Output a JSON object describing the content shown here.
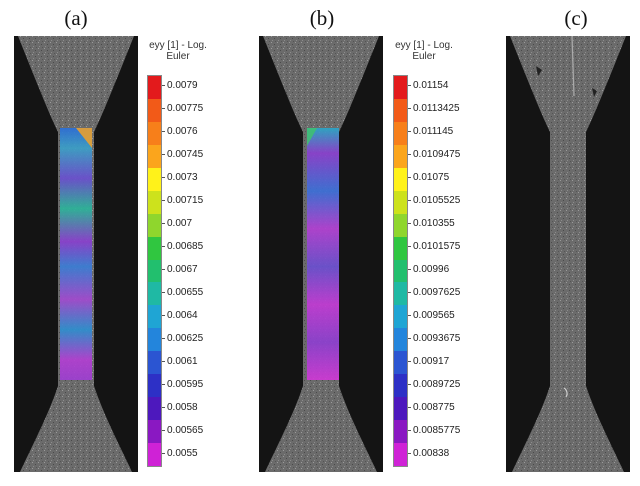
{
  "panels": [
    {
      "label": "(a)",
      "colorbar": {
        "title": [
          "eyy [1] - Log.",
          "Euler"
        ],
        "ticks": [
          "0.0079",
          "0.00775",
          "0.0076",
          "0.00745",
          "0.0073",
          "0.00715",
          "0.007",
          "0.00685",
          "0.0067",
          "0.00655",
          "0.0064",
          "0.00625",
          "0.0061",
          "0.00595",
          "0.0058",
          "0.00565",
          "0.0055"
        ]
      }
    },
    {
      "label": "(b)",
      "colorbar": {
        "title": [
          "eyy [1] - Log.",
          "Euler"
        ],
        "ticks": [
          "0.01154",
          "0.0113425",
          "0.011145",
          "0.0109475",
          "0.01075",
          "0.0105525",
          "0.010355",
          "0.0101575",
          "0.00996",
          "0.0097625",
          "0.009565",
          "0.0093675",
          "0.00917",
          "0.0089725",
          "0.008775",
          "0.0085775",
          "0.00838"
        ]
      }
    },
    {
      "label": "(c)"
    }
  ],
  "colors": {
    "scale": [
      "#e31a1c",
      "#f25a18",
      "#f77f1a",
      "#fba51c",
      "#fff21a",
      "#cde21c",
      "#8fd62d",
      "#30c640",
      "#22bf6e",
      "#1fb9a4",
      "#1fa5d4",
      "#2385dc",
      "#2b55d2",
      "#2d30c6",
      "#4d18bd",
      "#8a18c2",
      "#cf22d6"
    ],
    "photo_bg": "#141414",
    "specimen": "#6b6b6b"
  }
}
